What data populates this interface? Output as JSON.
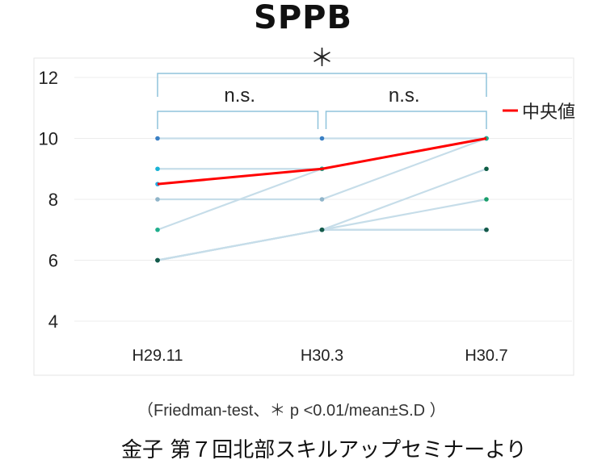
{
  "chart_data": {
    "type": "line",
    "title": "SPPB",
    "categories": [
      "H29.11",
      "H30.3",
      "H30.7"
    ],
    "yticks": [
      4,
      6,
      8,
      10,
      12
    ],
    "ylim": [
      4,
      12
    ],
    "grid": true,
    "median_series": {
      "name": "中央値",
      "color": "#ff0000",
      "values": [
        8.5,
        9,
        10
      ]
    },
    "individual_series": [
      {
        "values": [
          10,
          10,
          10
        ],
        "marker_color": "#3a7fc4"
      },
      {
        "values": [
          9,
          9,
          10
        ],
        "marker_color": "#19b3d6"
      },
      {
        "values": [
          8.5,
          9,
          10
        ],
        "marker_color": "#29a9e0"
      },
      {
        "values": [
          8,
          8,
          10
        ],
        "marker_color": "#8fb4c9"
      },
      {
        "values": [
          7,
          9,
          10
        ],
        "marker_color": "#1fae8c"
      },
      {
        "values": [
          6,
          7,
          9
        ],
        "marker_color": "#0e5c44"
      },
      {
        "values": [
          6,
          7,
          8
        ],
        "marker_color": "#1a9e6b"
      },
      {
        "values": [
          6,
          7,
          7
        ],
        "marker_color": "#2f6f9f"
      },
      {
        "values": [
          6,
          7,
          7
        ],
        "marker_color": "#145a48"
      }
    ],
    "individual_line_color": "#c6dde9",
    "significance": [
      {
        "from": 0,
        "to": 2,
        "label": "＊",
        "level": "top"
      },
      {
        "from": 0,
        "to": 1,
        "label": "n.s.",
        "level": "bottom"
      },
      {
        "from": 1,
        "to": 2,
        "label": "n.s.",
        "level": "bottom"
      }
    ],
    "legend": {
      "placement": "right",
      "label": "中央値"
    }
  },
  "footnote": "（Friedman-test、＊ p <0.01/mean±S.D ）",
  "source": "金子  第７回北部スキルアップセミナーより"
}
